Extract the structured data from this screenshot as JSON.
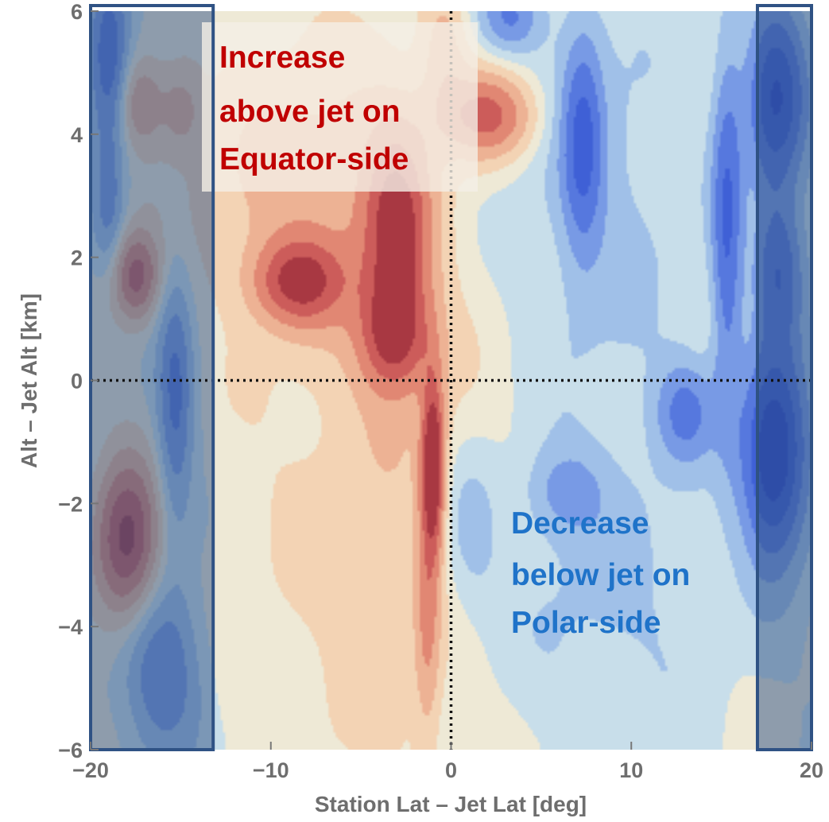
{
  "chart_data": {
    "type": "heatmap",
    "title": "",
    "xlabel": "Station Lat – Jet Lat [deg]",
    "ylabel": "Alt – Jet Alt [km]",
    "xlim": [
      -20,
      20
    ],
    "ylim": [
      -6,
      6
    ],
    "x_ticks": [
      -20,
      -10,
      0,
      10,
      20
    ],
    "y_ticks": [
      -6,
      -4,
      -2,
      0,
      2,
      4,
      6
    ],
    "x_tick_labels": [
      "−20",
      "−10",
      "0",
      "10",
      "20"
    ],
    "y_tick_labels": [
      "−6",
      "−4",
      "−2",
      "0",
      "2",
      "4",
      "6"
    ],
    "reference_lines": {
      "x": 0,
      "y": 0,
      "style": "dotted"
    },
    "highlight_bands_x": [
      [
        -20,
        -13.2
      ],
      [
        17,
        20
      ]
    ],
    "color_scale": {
      "positive": "#c0554e",
      "neutral": "#efe8d4",
      "negative": "#3e5fd0"
    },
    "features": [
      {
        "x": 2.0,
        "y": 4.3,
        "sx": 1.9,
        "sy": 0.5,
        "amp": 2.8
      },
      {
        "x": -0.4,
        "y": 5.4,
        "sx": 0.9,
        "sy": 0.7,
        "amp": 1.2
      },
      {
        "x": -3.0,
        "y": 2.3,
        "sx": 1.3,
        "sy": 1.3,
        "amp": 3.2
      },
      {
        "x": -8.5,
        "y": 1.6,
        "sx": 1.8,
        "sy": 0.5,
        "amp": 3.0
      },
      {
        "x": -3.2,
        "y": 0.7,
        "sx": 1.4,
        "sy": 0.6,
        "amp": 2.3
      },
      {
        "x": -1.0,
        "y": -1.4,
        "sx": 0.45,
        "sy": 1.0,
        "amp": 4.2
      },
      {
        "x": -1.3,
        "y": -3.9,
        "sx": 0.5,
        "sy": 1.4,
        "amp": 1.5
      },
      {
        "x": -8.0,
        "y": 3.3,
        "sx": 4.5,
        "sy": 1.5,
        "amp": 1.2
      },
      {
        "x": -3.5,
        "y": -2.0,
        "sx": 5.0,
        "sy": 3.5,
        "amp": 0.8
      },
      {
        "x": -17.5,
        "y": 1.7,
        "sx": 0.9,
        "sy": 0.5,
        "amp": 2.8
      },
      {
        "x": -18.0,
        "y": -2.6,
        "sx": 1.2,
        "sy": 0.9,
        "amp": 3.6
      },
      {
        "x": -17.3,
        "y": 4.5,
        "sx": 0.9,
        "sy": 0.5,
        "amp": 1.6
      },
      {
        "x": -15.0,
        "y": 4.4,
        "sx": 0.8,
        "sy": 0.5,
        "amp": 1.2
      },
      {
        "x": 8.0,
        "y": 3.0,
        "sx": 4.0,
        "sy": 2.5,
        "amp": -0.9
      },
      {
        "x": 8.0,
        "y": -3.5,
        "sx": 5.0,
        "sy": 2.0,
        "amp": -0.8
      },
      {
        "x": 7.3,
        "y": 3.9,
        "sx": 0.8,
        "sy": 1.3,
        "amp": -2.4
      },
      {
        "x": 15.3,
        "y": 2.5,
        "sx": 0.6,
        "sy": 2.0,
        "amp": -2.6
      },
      {
        "x": 13.0,
        "y": -0.5,
        "sx": 1.2,
        "sy": 0.6,
        "amp": -2.0
      },
      {
        "x": 6.3,
        "y": -1.8,
        "sx": 1.5,
        "sy": 0.5,
        "amp": -1.3
      },
      {
        "x": 3.2,
        "y": 5.9,
        "sx": 1.2,
        "sy": 0.4,
        "amp": -1.8
      },
      {
        "x": 1.0,
        "y": -2.5,
        "sx": 1.2,
        "sy": 1.0,
        "amp": -1.1
      },
      {
        "x": 17.9,
        "y": -1.2,
        "sx": 1.3,
        "sy": 1.2,
        "amp": -4.5
      },
      {
        "x": 18.0,
        "y": 4.6,
        "sx": 1.2,
        "sy": 1.1,
        "amp": -3.6
      },
      {
        "x": 18.2,
        "y": 1.8,
        "sx": 1.0,
        "sy": 0.8,
        "amp": -2.5
      },
      {
        "x": -19.0,
        "y": 5.2,
        "sx": 0.8,
        "sy": 1.0,
        "amp": -2.8
      },
      {
        "x": -15.3,
        "y": -0.3,
        "sx": 0.7,
        "sy": 1.5,
        "amp": -2.2
      },
      {
        "x": -16.0,
        "y": -4.8,
        "sx": 1.5,
        "sy": 1.0,
        "amp": -2.0
      },
      {
        "x": -19.0,
        "y": 2.8,
        "sx": 0.6,
        "sy": 0.8,
        "amp": -1.4
      }
    ]
  },
  "annotations": {
    "equator_note": {
      "lines": [
        "Increase",
        "above jet on",
        "Equator-side"
      ],
      "color": "#c00000"
    },
    "polar_note": {
      "lines": [
        "Decrease",
        "below jet on",
        "Polar-side"
      ],
      "color": "#1f73c9"
    }
  }
}
